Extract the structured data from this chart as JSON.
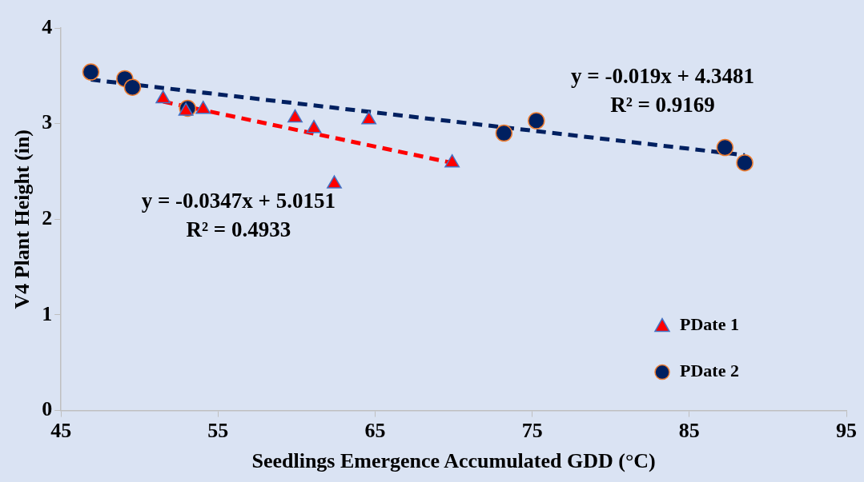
{
  "chart_data": {
    "type": "scatter",
    "xlabel": "Seedlings Emergence Accumulated GDD (°C)",
    "ylabel": "V4 Plant Height (in)",
    "xlim": [
      45,
      95
    ],
    "xticks": [
      45,
      55,
      65,
      75,
      85,
      95
    ],
    "ylim": [
      0,
      4
    ],
    "yticks": [
      0,
      1,
      2,
      3,
      4
    ],
    "grid": false,
    "legend": "bottom right",
    "series": [
      {
        "name": "PDate 1",
        "marker": "triangle",
        "color": "#ff0000",
        "x": [
          51.5,
          52.95,
          54.05,
          59.9,
          61.1,
          62.4,
          64.6,
          69.9
        ],
        "values": [
          3.26,
          3.13,
          3.15,
          3.06,
          2.95,
          2.37,
          3.04,
          2.59
        ]
      },
      {
        "name": "PDate 2",
        "marker": "circle",
        "color": "#002060",
        "x": [
          46.9,
          49.06,
          49.55,
          53.06,
          73.2,
          75.26,
          87.27,
          88.53
        ],
        "values": [
          3.54,
          3.47,
          3.38,
          3.16,
          2.9,
          3.03,
          2.75,
          2.59
        ]
      },
      {
        "type": "line",
        "color": "#ff0000",
        "line_style": "dashed",
        "marker": "none",
        "x": [
          51.5,
          69.9
        ],
        "values": [
          3.23,
          2.59
        ]
      },
      {
        "type": "line",
        "color": "#002060",
        "line_style": "dashed",
        "marker": "none",
        "x": [
          46.9,
          88.53
        ],
        "values": [
          3.46,
          2.67
        ]
      }
    ],
    "annotations": [
      "y = -0.0347x + 5.0151",
      "R² = 0.4933",
      "y = -0.019x + 4.3481",
      "R² = 0.9169"
    ]
  }
}
